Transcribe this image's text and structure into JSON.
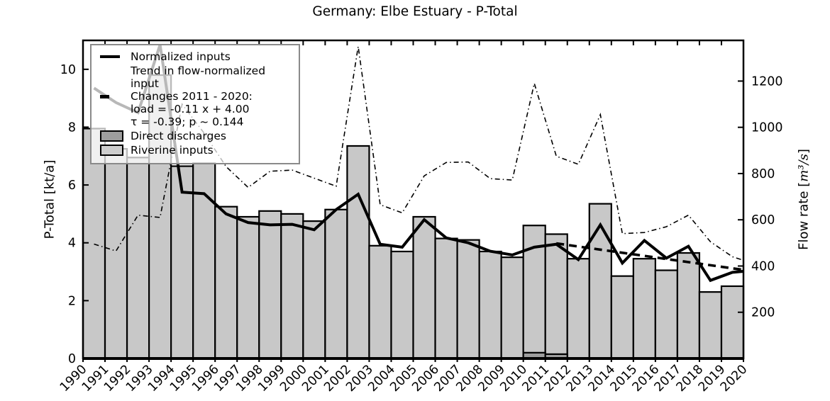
{
  "title": "Germany: Elbe Estuary - P-Total",
  "axes": {
    "left": {
      "label": "P-Total [kt/a]",
      "ticks": [
        0,
        2,
        4,
        6,
        8,
        10
      ],
      "max": 11
    },
    "right": {
      "label_prefix": "Flow rate [",
      "label_math": "m³/s",
      "label_suffix": "]",
      "ticks": [
        200,
        400,
        600,
        800,
        1000,
        1200
      ],
      "max": 1376
    },
    "x": {
      "tick_labels": [
        "1990",
        "1991",
        "1992",
        "1993",
        "1994",
        "1995",
        "1996",
        "1997",
        "1998",
        "1999",
        "2000",
        "2001",
        "2002",
        "2003",
        "2004",
        "2005",
        "2006",
        "2007",
        "2008",
        "2009",
        "2010",
        "2011",
        "2012",
        "2013",
        "2014",
        "2015",
        "2016",
        "2017",
        "2018",
        "2019",
        "2020"
      ]
    }
  },
  "legend": {
    "normalized_label": "Normalized inputs",
    "trend_lines": [
      "Trend in flow-normalized input",
      "Changes 2011 - 2020:",
      "load = -0.11 x +  4.00",
      "τ = -0.39; p ~ 0.144"
    ],
    "direct_label": "Direct discharges",
    "riverine_label": "Riverine inputs"
  },
  "chart_data": {
    "type": "bar",
    "title": "Germany: Elbe Estuary - P-Total",
    "xlabel": "",
    "ylabel_left": "P-Total [kt/a]",
    "ylabel_right": "Flow rate [m³/s]",
    "xlim": [
      1990,
      2020
    ],
    "ylim_left": [
      0,
      11
    ],
    "ylim_right": [
      0,
      1376
    ],
    "grid": false,
    "legend_position": "upper left",
    "categories": [
      1990,
      1991,
      1992,
      1993,
      1994,
      1995,
      1996,
      1997,
      1998,
      1999,
      2000,
      2001,
      2002,
      2003,
      2004,
      2005,
      2006,
      2007,
      2008,
      2009,
      2010,
      2011,
      2012,
      2013,
      2014,
      2015,
      2016,
      2017,
      2018,
      2019
    ],
    "series": [
      {
        "name": "Riverine inputs",
        "type": "bar",
        "axis": "left",
        "color": "#c8c8c8",
        "values": [
          7.95,
          7.25,
          6.95,
          9.8,
          6.65,
          6.75,
          5.25,
          4.9,
          5.1,
          5.0,
          4.75,
          5.15,
          7.35,
          3.9,
          3.7,
          4.9,
          4.15,
          4.1,
          3.7,
          3.5,
          4.6,
          4.3,
          3.45,
          5.35,
          2.85,
          3.45,
          3.05,
          3.65,
          2.3,
          2.5
        ]
      },
      {
        "name": "Direct discharges",
        "type": "bar",
        "axis": "left",
        "color": "#9e9e9e",
        "values": [
          0,
          0,
          0,
          0,
          0,
          0,
          0,
          0,
          0,
          0,
          0,
          0,
          0,
          0,
          0,
          0,
          0,
          0,
          0,
          0,
          0.2,
          0.15,
          0,
          0,
          0,
          0,
          0,
          0,
          0,
          0
        ]
      },
      {
        "name": "Normalized inputs",
        "type": "line",
        "axis": "left",
        "style": "solid",
        "color": "#000000",
        "x": [
          1990,
          1991,
          1992,
          1993,
          1994,
          1995,
          1996,
          1997,
          1998,
          1999,
          2000,
          2001,
          2002,
          2003,
          2004,
          2005,
          2006,
          2007,
          2008,
          2009,
          2010,
          2011,
          2012,
          2013,
          2014,
          2015,
          2016,
          2017,
          2018,
          2019,
          2020
        ],
        "values": [
          9.35,
          8.85,
          8.5,
          10.85,
          5.75,
          5.7,
          5.0,
          4.7,
          4.62,
          4.64,
          4.45,
          5.15,
          5.68,
          3.95,
          3.85,
          4.8,
          4.17,
          4.0,
          3.71,
          3.58,
          3.85,
          3.95,
          3.42,
          4.62,
          3.3,
          4.08,
          3.47,
          3.88,
          2.7,
          2.98,
          3.05
        ]
      },
      {
        "name": "Flow rate",
        "type": "line",
        "axis": "right",
        "style": "dash-dot",
        "color": "#000000",
        "x": [
          1990,
          1991,
          1992,
          1993,
          1994,
          1995,
          1996,
          1997,
          1998,
          1999,
          2000,
          2001,
          2002,
          2003,
          2004,
          2005,
          2006,
          2007,
          2008,
          2009,
          2010,
          2011,
          2012,
          2013,
          2014,
          2015,
          2016,
          2017,
          2018,
          2019,
          2020
        ],
        "values": [
          495,
          465,
          620,
          610,
          1100,
          975,
          830,
          740,
          810,
          815,
          780,
          745,
          1350,
          665,
          630,
          790,
          848,
          850,
          778,
          772,
          1190,
          875,
          840,
          1055,
          540,
          545,
          570,
          620,
          505,
          440,
          410
        ]
      },
      {
        "name": "Trend in flow-normalized input",
        "type": "line",
        "axis": "left",
        "style": "dashed",
        "color": "#000000",
        "x": [
          2011,
          2020
        ],
        "values": [
          3.98,
          3.01
        ]
      }
    ]
  }
}
